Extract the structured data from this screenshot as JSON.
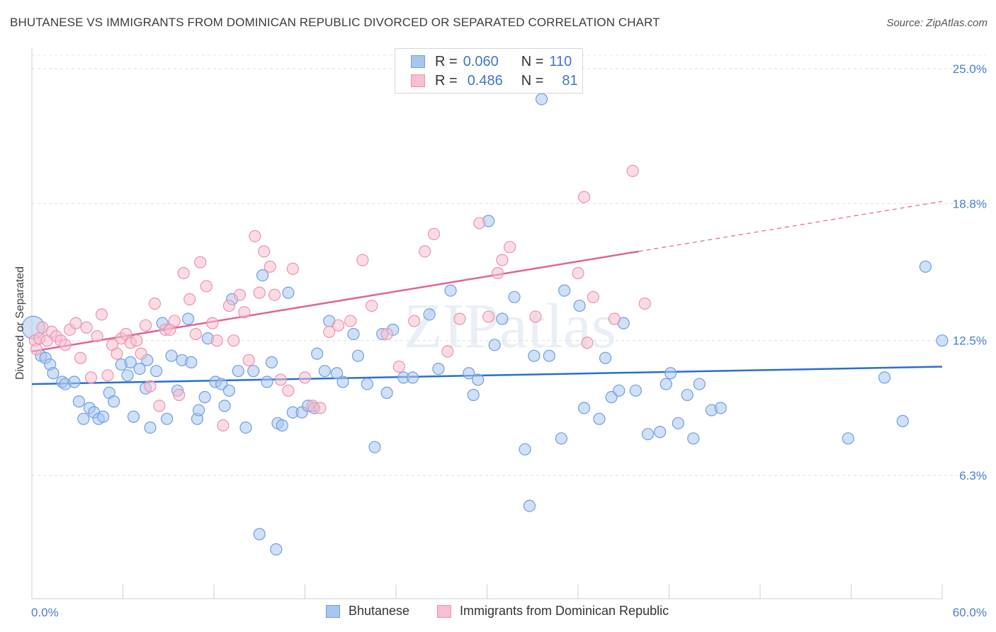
{
  "title": "BHUTANESE VS IMMIGRANTS FROM DOMINICAN REPUBLIC DIVORCED OR SEPARATED CORRELATION CHART",
  "source": "Source: ZipAtlas.com",
  "watermark": "ZIPatlas",
  "colors": {
    "blue_fill": "#a9c6ef",
    "blue_stroke": "#6e9fe0",
    "blue_line": "#2a6fd0",
    "pink_fill": "#f7bfd0",
    "pink_stroke": "#ea93ae",
    "pink_line": "#e06590",
    "tick_text": "#4a7fc9"
  },
  "legend": {
    "rows": [
      {
        "r_label": "R =",
        "r_value": "0.060",
        "n_label": "N =",
        "n_value": "110",
        "color": "blue"
      },
      {
        "r_label": "R =",
        "r_value": "0.486",
        "n_label": "N =",
        "n_value": "81",
        "color": "pink"
      }
    ]
  },
  "chart_data": {
    "type": "scatter",
    "title": "BHUTANESE VS IMMIGRANTS FROM DOMINICAN REPUBLIC DIVORCED OR SEPARATED CORRELATION CHART",
    "xlabel": "",
    "ylabel": "Divorced or Separated",
    "xlim": [
      0,
      60
    ],
    "ylim": [
      0,
      26
    ],
    "x_tick_labels": [
      "0.0%",
      "60.0%"
    ],
    "y_ticks": [
      6.3,
      12.5,
      18.8,
      25.0
    ],
    "y_tick_labels": [
      "6.3%",
      "12.5%",
      "18.8%",
      "25.0%"
    ],
    "grid": "horizontal dashed",
    "legend_position": "bottom",
    "series": [
      {
        "name": "Bhutanese",
        "color": "blue",
        "trend": {
          "x": [
            0,
            60
          ],
          "y": [
            10.5,
            11.3
          ],
          "dashed_from": null
        },
        "points": [
          [
            0,
            13.1
          ],
          [
            0.6,
            11.8
          ],
          [
            0.9,
            11.7
          ],
          [
            1.2,
            11.4
          ],
          [
            1.4,
            11.0
          ],
          [
            2.0,
            10.6
          ],
          [
            2.2,
            10.5
          ],
          [
            2.8,
            10.6
          ],
          [
            3.1,
            9.7
          ],
          [
            3.4,
            8.9
          ],
          [
            3.8,
            9.4
          ],
          [
            4.1,
            9.2
          ],
          [
            4.4,
            8.9
          ],
          [
            4.7,
            9.0
          ],
          [
            5.1,
            10.1
          ],
          [
            5.4,
            9.7
          ],
          [
            5.9,
            11.4
          ],
          [
            6.3,
            10.9
          ],
          [
            6.5,
            11.5
          ],
          [
            6.7,
            9.0
          ],
          [
            7.1,
            11.2
          ],
          [
            7.5,
            10.3
          ],
          [
            7.6,
            11.6
          ],
          [
            7.8,
            8.5
          ],
          [
            8.2,
            11.1
          ],
          [
            8.6,
            13.3
          ],
          [
            8.9,
            8.9
          ],
          [
            9.2,
            11.8
          ],
          [
            9.6,
            10.2
          ],
          [
            9.9,
            11.6
          ],
          [
            10.3,
            13.5
          ],
          [
            10.5,
            11.5
          ],
          [
            10.9,
            8.9
          ],
          [
            11.0,
            9.3
          ],
          [
            11.4,
            9.9
          ],
          [
            11.6,
            12.6
          ],
          [
            12.1,
            10.6
          ],
          [
            12.5,
            10.5
          ],
          [
            12.7,
            9.5
          ],
          [
            13.0,
            10.2
          ],
          [
            13.2,
            14.4
          ],
          [
            13.6,
            11.1
          ],
          [
            14.1,
            8.5
          ],
          [
            14.6,
            11.1
          ],
          [
            15.2,
            15.5
          ],
          [
            15.5,
            10.6
          ],
          [
            15.8,
            11.5
          ],
          [
            16.2,
            8.7
          ],
          [
            16.5,
            8.6
          ],
          [
            16.9,
            14.7
          ],
          [
            17.2,
            9.2
          ],
          [
            17.8,
            9.2
          ],
          [
            18.2,
            9.5
          ],
          [
            18.6,
            9.4
          ],
          [
            18.8,
            11.9
          ],
          [
            19.3,
            11.1
          ],
          [
            19.6,
            13.4
          ],
          [
            20.1,
            11.0
          ],
          [
            20.5,
            10.6
          ],
          [
            21.2,
            12.8
          ],
          [
            21.5,
            11.8
          ],
          [
            22.1,
            10.5
          ],
          [
            22.6,
            7.6
          ],
          [
            23.1,
            12.8
          ],
          [
            23.4,
            10.1
          ],
          [
            23.8,
            13.0
          ],
          [
            24.5,
            10.8
          ],
          [
            25.1,
            10.8
          ],
          [
            26.2,
            13.7
          ],
          [
            26.8,
            11.2
          ],
          [
            27.6,
            14.8
          ],
          [
            28.8,
            11.0
          ],
          [
            29.1,
            10.0
          ],
          [
            29.4,
            10.7
          ],
          [
            30.1,
            18.0
          ],
          [
            30.5,
            12.3
          ],
          [
            31.0,
            13.5
          ],
          [
            31.8,
            14.5
          ],
          [
            32.5,
            7.5
          ],
          [
            32.8,
            4.9
          ],
          [
            33.1,
            11.8
          ],
          [
            33.6,
            23.6
          ],
          [
            34.1,
            11.8
          ],
          [
            34.9,
            8.0
          ],
          [
            35.1,
            14.8
          ],
          [
            36.1,
            14.1
          ],
          [
            36.4,
            9.4
          ],
          [
            37.4,
            8.9
          ],
          [
            37.8,
            11.7
          ],
          [
            38.2,
            9.9
          ],
          [
            38.7,
            10.2
          ],
          [
            39.0,
            13.3
          ],
          [
            39.8,
            10.2
          ],
          [
            40.6,
            8.2
          ],
          [
            41.4,
            8.3
          ],
          [
            41.8,
            10.5
          ],
          [
            42.1,
            11.0
          ],
          [
            42.6,
            8.7
          ],
          [
            43.2,
            10.0
          ],
          [
            43.6,
            8.0
          ],
          [
            44.0,
            10.5
          ],
          [
            44.8,
            9.3
          ],
          [
            45.4,
            9.4
          ],
          [
            53.8,
            8.0
          ],
          [
            56.2,
            10.8
          ],
          [
            57.4,
            8.8
          ],
          [
            58.9,
            15.9
          ],
          [
            62.8,
            12.5
          ],
          [
            15.0,
            3.6
          ],
          [
            16.1,
            2.9
          ]
        ]
      },
      {
        "name": "Immigrants from Dominican Republic",
        "color": "pink",
        "trend": {
          "x": [
            0,
            60
          ],
          "y": [
            12.0,
            18.9
          ],
          "dashed_from": 40.0
        },
        "points": [
          [
            0.2,
            12.5
          ],
          [
            0.3,
            12.1
          ],
          [
            0.5,
            12.6
          ],
          [
            0.7,
            13.1
          ],
          [
            1.0,
            12.5
          ],
          [
            1.3,
            12.9
          ],
          [
            1.6,
            12.7
          ],
          [
            1.9,
            12.5
          ],
          [
            2.2,
            12.3
          ],
          [
            2.5,
            13.0
          ],
          [
            2.9,
            13.3
          ],
          [
            3.2,
            11.7
          ],
          [
            3.6,
            13.1
          ],
          [
            3.9,
            10.8
          ],
          [
            4.3,
            12.7
          ],
          [
            4.6,
            13.7
          ],
          [
            5.0,
            10.9
          ],
          [
            5.3,
            12.3
          ],
          [
            5.6,
            11.9
          ],
          [
            5.9,
            12.6
          ],
          [
            6.2,
            12.8
          ],
          [
            6.5,
            12.4
          ],
          [
            6.9,
            12.5
          ],
          [
            7.2,
            11.9
          ],
          [
            7.5,
            13.2
          ],
          [
            7.8,
            10.4
          ],
          [
            8.1,
            14.2
          ],
          [
            8.4,
            9.5
          ],
          [
            8.8,
            13.0
          ],
          [
            9.1,
            13.0
          ],
          [
            9.4,
            13.4
          ],
          [
            9.7,
            10.0
          ],
          [
            10.0,
            15.6
          ],
          [
            10.4,
            14.4
          ],
          [
            10.8,
            12.8
          ],
          [
            11.1,
            16.1
          ],
          [
            11.5,
            15.0
          ],
          [
            11.9,
            13.3
          ],
          [
            12.2,
            12.5
          ],
          [
            12.6,
            8.6
          ],
          [
            13.0,
            14.1
          ],
          [
            13.3,
            12.5
          ],
          [
            13.7,
            14.6
          ],
          [
            14.0,
            13.8
          ],
          [
            14.3,
            11.6
          ],
          [
            14.7,
            17.3
          ],
          [
            15.0,
            14.7
          ],
          [
            15.3,
            16.6
          ],
          [
            15.7,
            15.9
          ],
          [
            16.0,
            14.6
          ],
          [
            16.4,
            10.7
          ],
          [
            16.9,
            10.2
          ],
          [
            17.2,
            15.8
          ],
          [
            18.0,
            10.8
          ],
          [
            18.5,
            9.5
          ],
          [
            19.0,
            9.4
          ],
          [
            19.6,
            12.9
          ],
          [
            20.2,
            13.2
          ],
          [
            21.0,
            13.4
          ],
          [
            21.8,
            16.2
          ],
          [
            22.4,
            14.1
          ],
          [
            23.4,
            12.8
          ],
          [
            24.2,
            11.3
          ],
          [
            25.2,
            13.4
          ],
          [
            25.9,
            16.6
          ],
          [
            26.5,
            17.4
          ],
          [
            27.4,
            12.0
          ],
          [
            28.2,
            13.5
          ],
          [
            29.5,
            17.9
          ],
          [
            30.1,
            13.6
          ],
          [
            30.7,
            15.6
          ],
          [
            31.0,
            16.2
          ],
          [
            31.5,
            16.8
          ],
          [
            36.0,
            15.6
          ],
          [
            36.6,
            12.4
          ],
          [
            37.0,
            14.5
          ],
          [
            38.4,
            13.5
          ],
          [
            40.4,
            14.2
          ],
          [
            39.6,
            20.3
          ],
          [
            36.4,
            19.1
          ],
          [
            33.2,
            13.6
          ]
        ]
      }
    ]
  },
  "axis": {
    "ylabel": "Divorced or Separated",
    "x_left": "0.0%",
    "x_right": "60.0%",
    "y_labels": [
      "25.0%",
      "18.8%",
      "12.5%",
      "6.3%"
    ]
  },
  "bottom_legend": {
    "items": [
      "Bhutanese",
      "Immigrants from Dominican Republic"
    ]
  }
}
